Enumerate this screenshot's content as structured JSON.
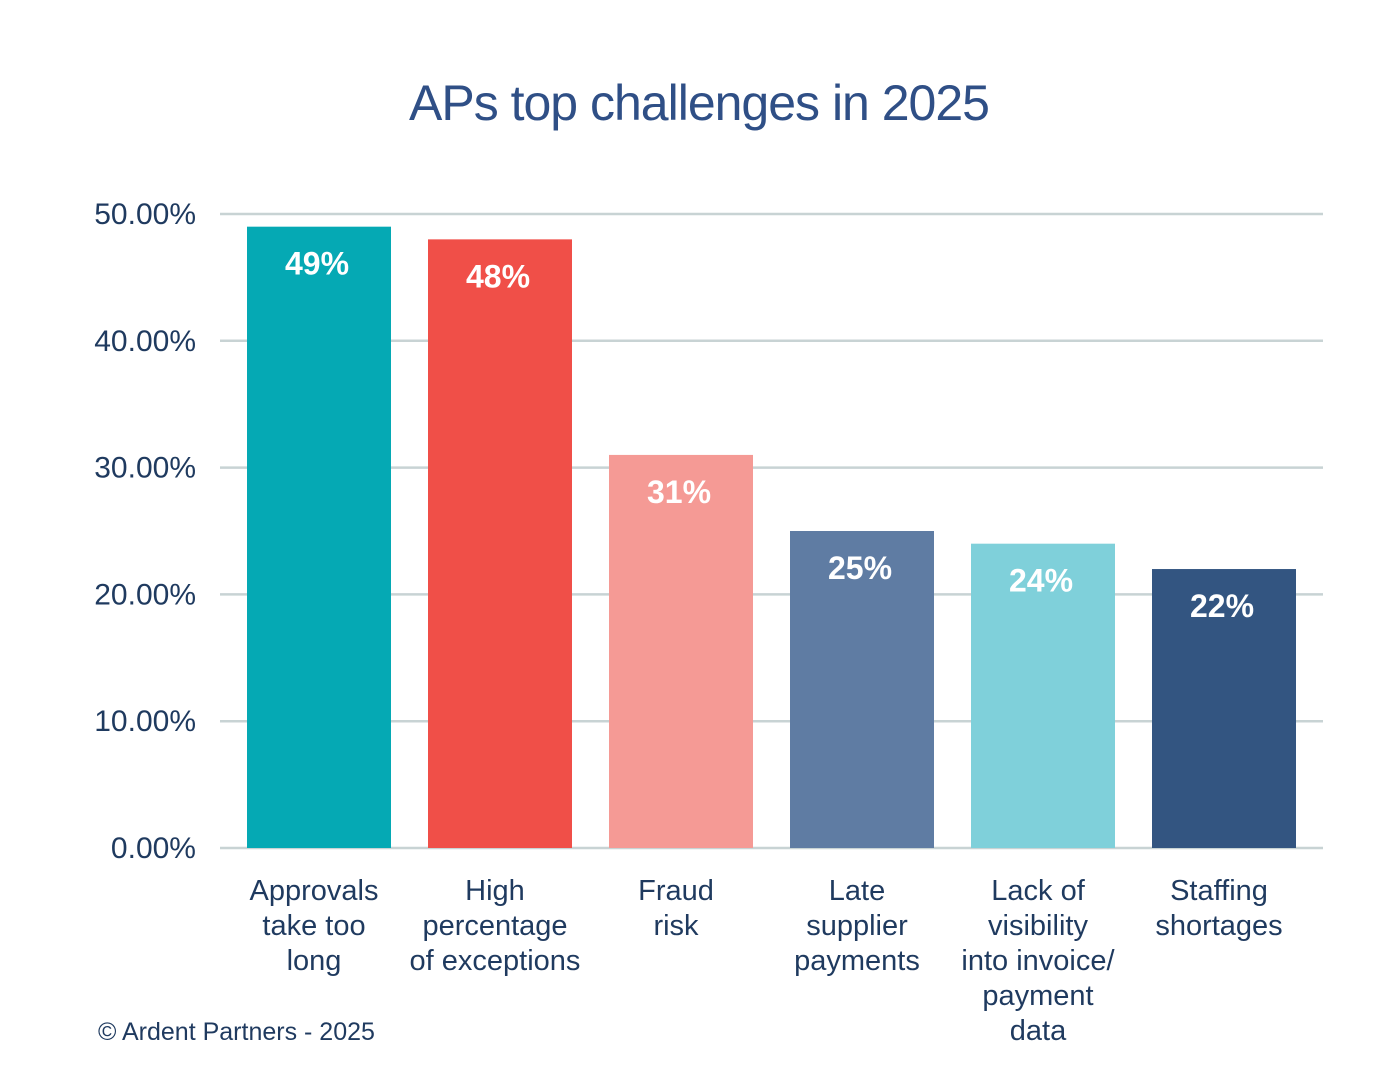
{
  "chart_data": {
    "type": "bar",
    "title": "APs top challenges in 2025",
    "categories": [
      [
        "Approvals",
        "take too",
        "long"
      ],
      [
        "High",
        "percentage",
        "of exceptions"
      ],
      [
        "Fraud",
        "risk"
      ],
      [
        "Late",
        "supplier",
        "payments"
      ],
      [
        "Lack of",
        "visibility",
        "into invoice/",
        "payment",
        "data"
      ],
      [
        "Staffing",
        "shortages"
      ]
    ],
    "values": [
      49,
      48,
      31,
      25,
      24,
      22
    ],
    "data_labels": [
      "49%",
      "48%",
      "31%",
      "25%",
      "24%",
      "22%"
    ],
    "bar_colors": [
      "#05a9b4",
      "#f04f48",
      "#f59a95",
      "#5f7ca3",
      "#7fd0da",
      "#335581"
    ],
    "ylim": [
      0,
      50
    ],
    "yticks": [
      0,
      10,
      20,
      30,
      40,
      50
    ],
    "ytick_labels": [
      "0.00%",
      "10.00%",
      "20.00%",
      "30.00%",
      "40.00%",
      "50.00%"
    ],
    "xlabel": "",
    "ylabel": "",
    "grid": true,
    "legend": "none"
  },
  "footer": {
    "credit": "© Ardent Partners - 2025"
  }
}
